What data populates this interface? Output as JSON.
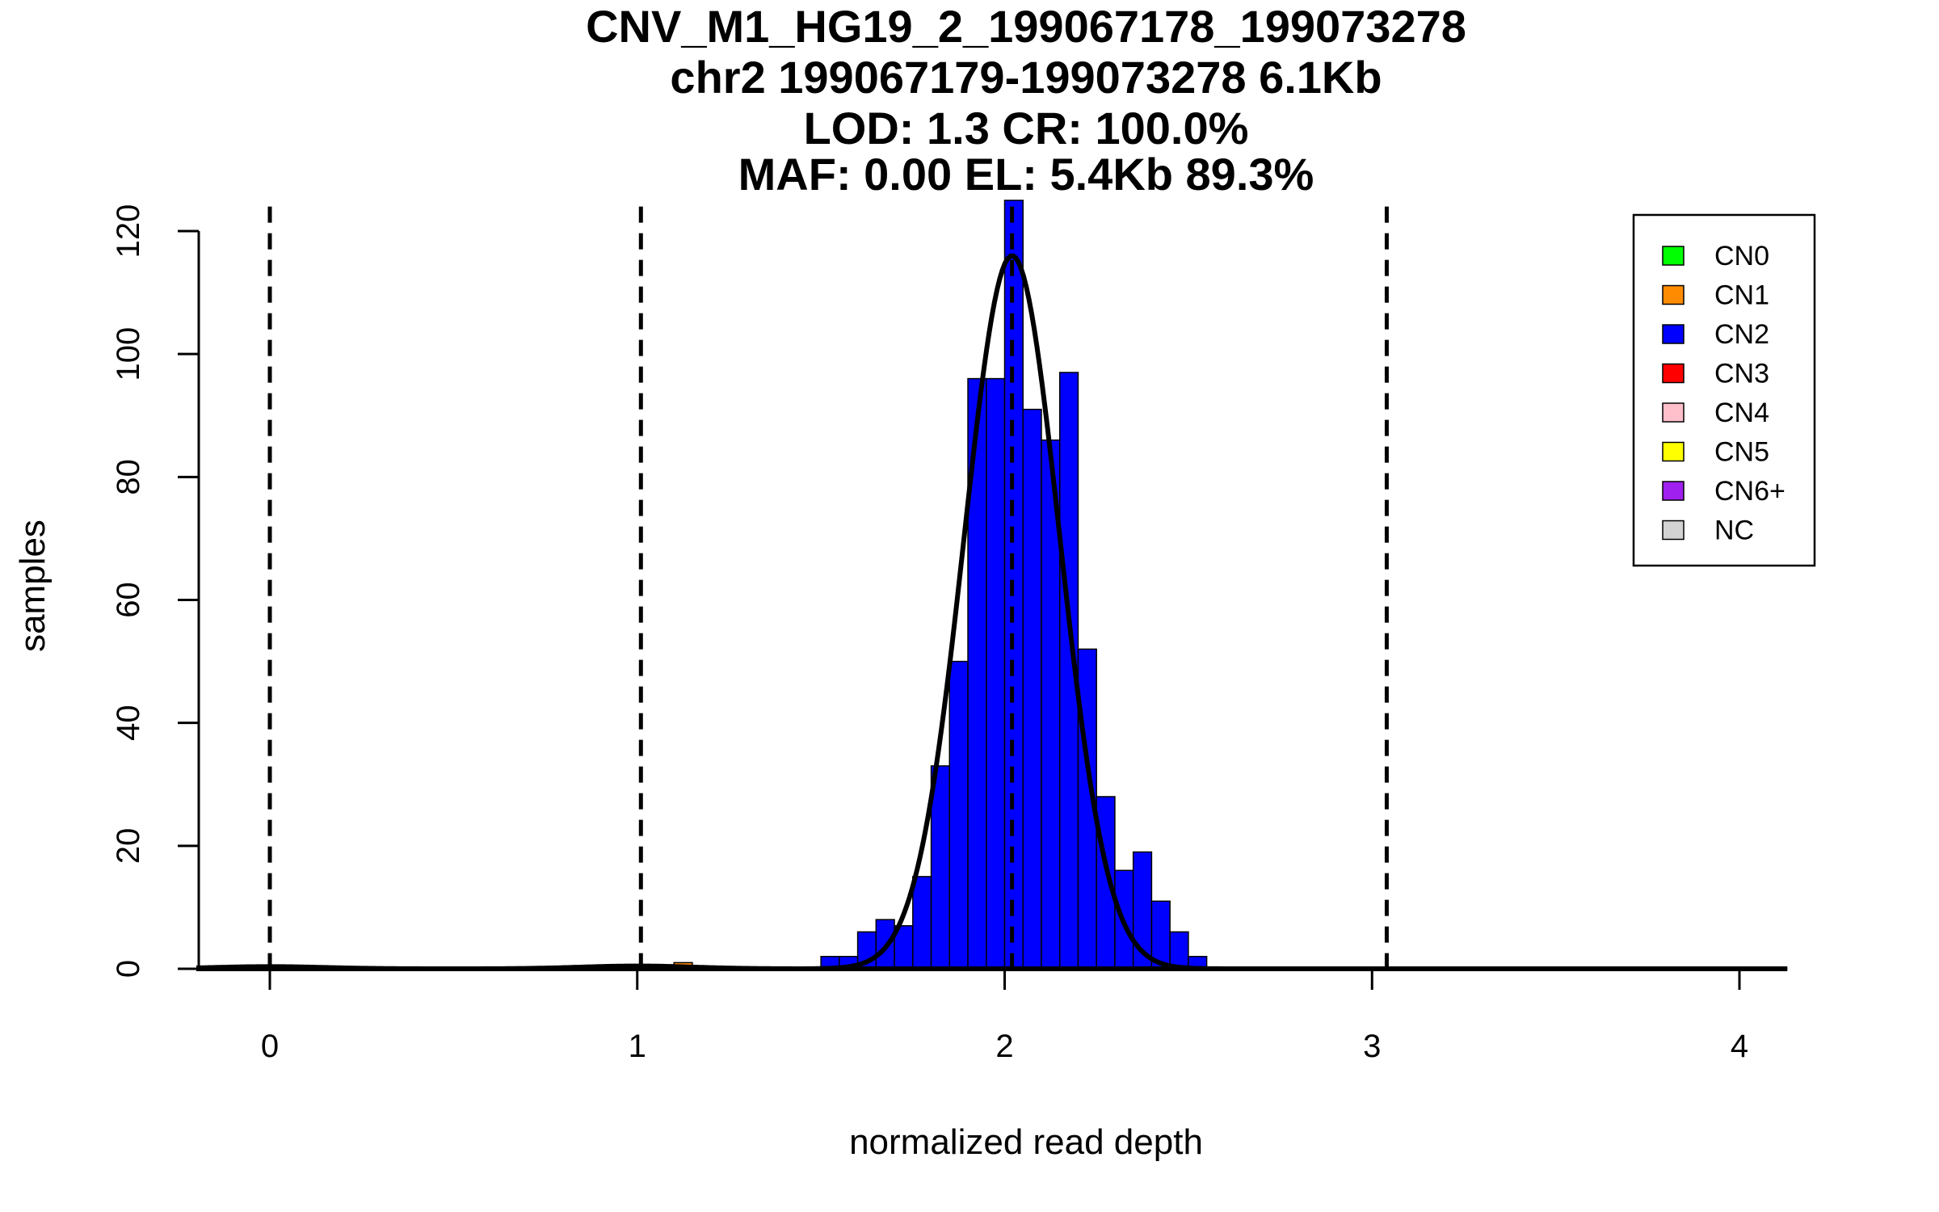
{
  "chart_data": {
    "type": "histogram",
    "title_lines": [
      "CNV_M1_HG19_2_199067178_199073278",
      "chr2 199067179-199073278 6.1Kb",
      "LOD: 1.3 CR: 100.0%",
      "MAF: 0.00 EL: 5.4Kb 89.3%"
    ],
    "xlabel": "normalized read depth",
    "ylabel": "samples",
    "xlim": [
      -0.2,
      4.13
    ],
    "ylim": [
      0,
      120
    ],
    "x_ticks": [
      0,
      1,
      2,
      3,
      4
    ],
    "y_ticks": [
      0,
      20,
      40,
      60,
      80,
      100,
      120
    ],
    "bin_width": 0.05,
    "series": [
      {
        "name": "CN1",
        "color": "#FF8C00",
        "bins": [
          {
            "x0": 1.1,
            "count": 1
          }
        ]
      },
      {
        "name": "CN2",
        "color": "#0000FF",
        "bins": [
          {
            "x0": 1.5,
            "count": 2
          },
          {
            "x0": 1.55,
            "count": 2
          },
          {
            "x0": 1.6,
            "count": 6
          },
          {
            "x0": 1.65,
            "count": 8
          },
          {
            "x0": 1.7,
            "count": 7
          },
          {
            "x0": 1.75,
            "count": 15
          },
          {
            "x0": 1.8,
            "count": 33
          },
          {
            "x0": 1.85,
            "count": 50
          },
          {
            "x0": 1.9,
            "count": 96
          },
          {
            "x0": 1.95,
            "count": 96
          },
          {
            "x0": 2.0,
            "count": 125
          },
          {
            "x0": 2.05,
            "count": 91
          },
          {
            "x0": 2.1,
            "count": 86
          },
          {
            "x0": 2.15,
            "count": 97
          },
          {
            "x0": 2.2,
            "count": 52
          },
          {
            "x0": 2.25,
            "count": 28
          },
          {
            "x0": 2.3,
            "count": 16
          },
          {
            "x0": 2.35,
            "count": 19
          },
          {
            "x0": 2.4,
            "count": 11
          },
          {
            "x0": 2.45,
            "count": 6
          },
          {
            "x0": 2.5,
            "count": 2
          }
        ]
      }
    ],
    "baseline_segments": [
      [
        -0.2,
        0.2
      ],
      [
        0.6,
        1.45
      ],
      [
        2.5,
        3.75
      ],
      [
        3.75,
        4.13
      ]
    ],
    "fit_curves": [
      {
        "mean": 2.02,
        "sd": 0.13,
        "peak": 116
      },
      {
        "mean": 1.0,
        "sd": 0.15,
        "peak": 0.45
      },
      {
        "mean": 0.0,
        "sd": 0.15,
        "peak": 0.35
      }
    ],
    "vlines": [
      0.0,
      1.01,
      2.02,
      3.04
    ],
    "legend": {
      "position": "top-right",
      "entries": [
        {
          "label": "CN0",
          "color": "#00FF00"
        },
        {
          "label": "CN1",
          "color": "#FF8C00"
        },
        {
          "label": "CN2",
          "color": "#0000FF"
        },
        {
          "label": "CN3",
          "color": "#FF0000"
        },
        {
          "label": "CN4",
          "color": "#FFC0CB"
        },
        {
          "label": "CN5",
          "color": "#FFFF00"
        },
        {
          "label": "CN6+",
          "color": "#A020F0"
        },
        {
          "label": "NC",
          "color": "#D3D3D3"
        }
      ]
    }
  }
}
